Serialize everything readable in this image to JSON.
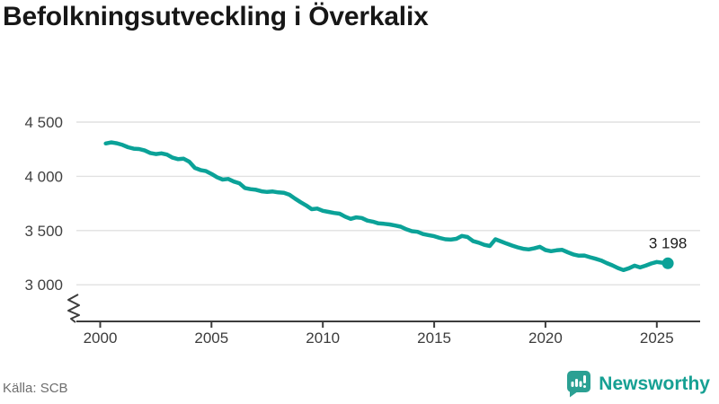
{
  "header": {
    "title": "Befolkningsutveckling i Överkalix"
  },
  "source": {
    "label": "Källa: SCB"
  },
  "branding": {
    "name": "Newsworthy",
    "icon": "newsworthy-bar-chart-speech-bubble",
    "color": "#16a093"
  },
  "chart_data": {
    "type": "line",
    "title": "Befolkningsutveckling i Överkalix",
    "xlabel": "",
    "ylabel": "",
    "x_ticks": [
      2000,
      2005,
      2010,
      2015,
      2020,
      2025
    ],
    "x_tick_labels": [
      "2000",
      "2005",
      "2010",
      "2015",
      "2020",
      "2025"
    ],
    "y_ticks": [
      3000,
      3500,
      4000,
      4500
    ],
    "y_tick_labels": [
      "3 000",
      "3 500",
      "4 000",
      "4 500"
    ],
    "xlim": [
      1998.9,
      2027
    ],
    "ylim": [
      2950,
      4600
    ],
    "axis_break": true,
    "grid": "horizontal",
    "line_color": "#0ba298",
    "end_label": "3 198",
    "end_value": 3198,
    "series": [
      {
        "name": "Befolkning i Överkalix (kvartal)",
        "x_start": 2000.25,
        "x_step": 0.25,
        "values": [
          4303,
          4313,
          4305,
          4290,
          4268,
          4255,
          4252,
          4238,
          4215,
          4205,
          4212,
          4200,
          4172,
          4158,
          4162,
          4135,
          4078,
          4058,
          4048,
          4022,
          3992,
          3970,
          3976,
          3952,
          3936,
          3892,
          3882,
          3876,
          3862,
          3856,
          3860,
          3852,
          3848,
          3830,
          3795,
          3762,
          3732,
          3697,
          3703,
          3682,
          3672,
          3662,
          3656,
          3628,
          3608,
          3622,
          3616,
          3592,
          3582,
          3566,
          3562,
          3556,
          3546,
          3536,
          3512,
          3494,
          3488,
          3468,
          3458,
          3448,
          3432,
          3420,
          3416,
          3424,
          3450,
          3440,
          3402,
          3388,
          3368,
          3358,
          3420,
          3400,
          3380,
          3362,
          3345,
          3332,
          3326,
          3336,
          3350,
          3320,
          3310,
          3318,
          3322,
          3300,
          3280,
          3268,
          3270,
          3254,
          3240,
          3224,
          3200,
          3180,
          3155,
          3136,
          3152,
          3176,
          3160,
          3176,
          3196,
          3210,
          3204,
          3198
        ]
      }
    ]
  }
}
